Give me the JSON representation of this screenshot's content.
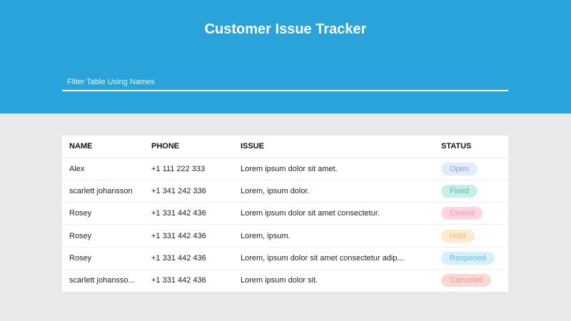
{
  "header": {
    "title": "Customer Issue Tracker",
    "filter_placeholder": "Fliter Table Using Names",
    "filter_value": ""
  },
  "table": {
    "columns": [
      "NAME",
      "PHONE",
      "ISSUE",
      "STATUS"
    ],
    "rows": [
      {
        "name": "Alex",
        "phone": "+1 111 222 333",
        "issue": "Lorem ipsum dolor sit amet.",
        "status": "Open"
      },
      {
        "name": "scarlett johansson",
        "phone": "+1 341 242 336",
        "issue": "Lorem, ipsum dolor.",
        "status": "Fixed"
      },
      {
        "name": "Rosey",
        "phone": "+1 331 442 436",
        "issue": "Lorem ipsum dolor sit amet consectetur.",
        "status": "Closed"
      },
      {
        "name": "Rosey",
        "phone": "+1 331 442 436",
        "issue": "Lorem, ipsum.",
        "status": "Hold"
      },
      {
        "name": "Rosey",
        "phone": "+1 331 442 436",
        "issue": "Lorem, ipsum dolor sit amet consectetur adip...",
        "status": "Reopened"
      },
      {
        "name": "scarlett johansso...",
        "phone": "+1 331 442 436",
        "issue": "Lorem ipsum dolor sit.",
        "status": "Canceled"
      }
    ]
  },
  "colors": {
    "header_bg": "#29a3d9",
    "status": {
      "Open": {
        "bg": "#e3ecfa",
        "fg": "#8aa3d8"
      },
      "Fixed": {
        "bg": "#c5f0e8",
        "fg": "#4fc3ad"
      },
      "Closed": {
        "bg": "#fbd6e0",
        "fg": "#ee9bb5"
      },
      "Hold": {
        "bg": "#fdebd0",
        "fg": "#eebf6c"
      },
      "Reopened": {
        "bg": "#d3f1fc",
        "fg": "#5fc3e3"
      },
      "Canceled": {
        "bg": "#fbd8d2",
        "fg": "#ee9a8c"
      }
    }
  }
}
